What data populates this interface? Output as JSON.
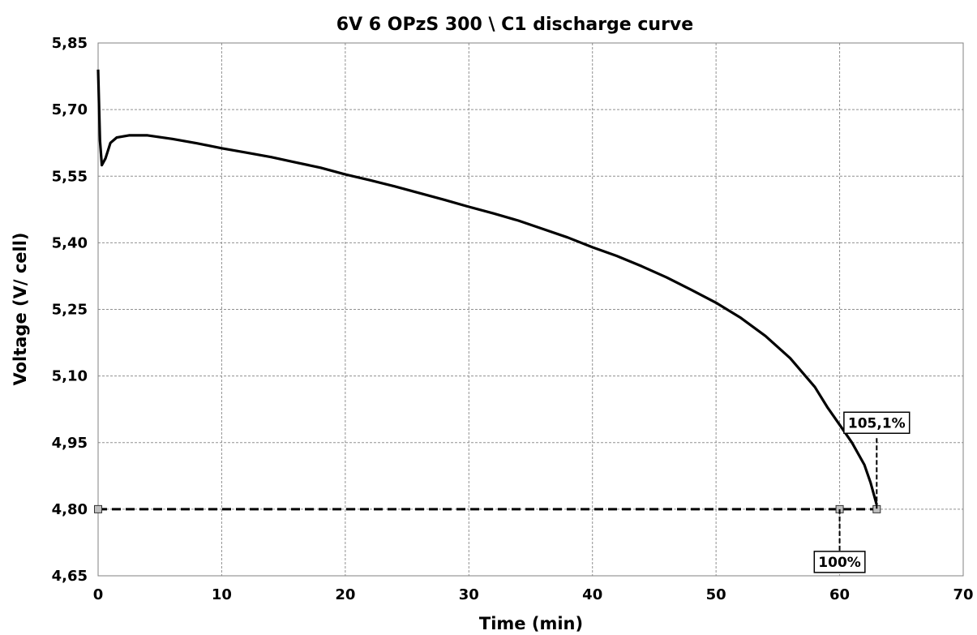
{
  "chart_data": {
    "type": "line",
    "title": "6V 6 OPzS 300 \\  C1 discharge curve",
    "xlabel": "Time (min)",
    "ylabel": "Voltage (V/ cell)",
    "xlim": [
      0,
      70
    ],
    "ylim": [
      4.65,
      5.85
    ],
    "x_ticks": [
      0,
      10,
      20,
      30,
      40,
      50,
      60,
      70
    ],
    "x_tick_labels": [
      "0",
      "10",
      "20",
      "30",
      "40",
      "50",
      "60",
      "70"
    ],
    "y_ticks": [
      4.65,
      4.8,
      4.95,
      5.1,
      5.25,
      5.4,
      5.55,
      5.7,
      5.85
    ],
    "y_tick_labels": [
      "4,65",
      "4,80",
      "4,95",
      "5,10",
      "5,25",
      "5,40",
      "5,55",
      "5,70",
      "5,85"
    ],
    "grid": true,
    "series": [
      {
        "style": "solid",
        "color": "#000000",
        "x": [
          0.0,
          0.15,
          0.3,
          0.6,
          1.0,
          1.5,
          2.5,
          4.0,
          6.0,
          8.0,
          10.0,
          12.0,
          14.0,
          16.0,
          18.0,
          20.0,
          22.0,
          24.0,
          26.0,
          28.0,
          30.0,
          32.0,
          34.0,
          36.0,
          38.0,
          40.0,
          42.0,
          44.0,
          46.0,
          48.0,
          50.0,
          52.0,
          54.0,
          56.0,
          58.0,
          59.0,
          60.0,
          61.0,
          62.0,
          62.5,
          63.0
        ],
        "y": [
          5.79,
          5.63,
          5.575,
          5.59,
          5.625,
          5.637,
          5.642,
          5.642,
          5.634,
          5.624,
          5.613,
          5.603,
          5.593,
          5.581,
          5.569,
          5.554,
          5.541,
          5.527,
          5.512,
          5.497,
          5.481,
          5.466,
          5.45,
          5.431,
          5.412,
          5.39,
          5.37,
          5.347,
          5.322,
          5.294,
          5.265,
          5.231,
          5.19,
          5.14,
          5.075,
          5.03,
          4.99,
          4.95,
          4.9,
          4.86,
          4.81
        ]
      },
      {
        "style": "dashed",
        "color": "#000000",
        "x": [
          0,
          60,
          63
        ],
        "y": [
          4.8,
          4.8,
          4.8
        ]
      }
    ],
    "markers": [
      {
        "x": 0,
        "y": 4.8
      },
      {
        "x": 60,
        "y": 4.8
      },
      {
        "x": 63,
        "y": 4.8
      }
    ],
    "annotations": [
      {
        "text": "105,1%",
        "x": 63,
        "y_top": 4.96,
        "y_bottom": 4.8
      },
      {
        "text": "100%",
        "x": 60,
        "y_top": 4.8,
        "y_bottom": 4.705
      }
    ]
  }
}
